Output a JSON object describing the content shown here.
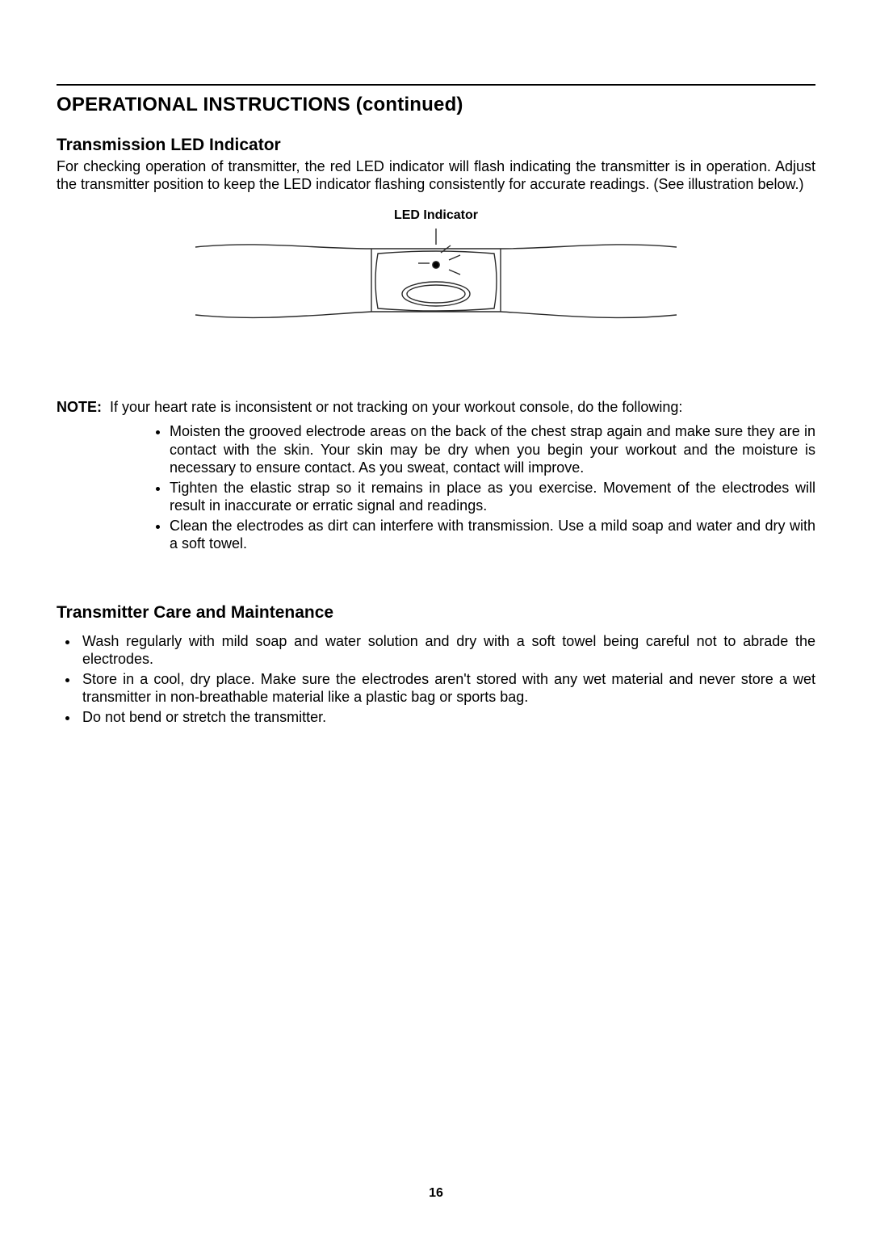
{
  "section_title": "OPERATIONAL INSTRUCTIONS (continued)",
  "sub1_title": "Transmission LED Indicator",
  "sub1_body": "For checking operation of transmitter, the red LED indicator will flash indicating the transmitter is in operation. Adjust the transmitter position to keep the LED indicator flashing consistently for accurate readings. (See illustration below.)",
  "figure": {
    "label": "LED Indicator",
    "stroke": "#2a2a2a",
    "stroke_width": 1.4,
    "led_dot_radius": 4.2
  },
  "note_label": "NOTE:",
  "note_lead": "If your heart rate is inconsistent or not tracking on your workout console, do the following:",
  "note_bullets": [
    "Moisten the grooved electrode areas on the back of the chest strap again and make sure they are in contact with the skin. Your skin may be dry when you begin your workout and the moisture is necessary to ensure contact. As you sweat, contact will improve.",
    "Tighten the elastic strap so it remains in place as you exercise. Movement of the electrodes will result in inaccurate or erratic signal and readings.",
    "Clean the electrodes as dirt can interfere with transmission. Use a mild soap and water and dry with a soft towel."
  ],
  "sub2_title": "Transmitter Care and Maintenance",
  "care_bullets": [
    "Wash regularly with mild soap and water solution and dry with a soft towel being careful not to abrade the electrodes.",
    "Store in a cool, dry place. Make sure the electrodes aren't stored with any wet material and never store a wet transmitter in non-breathable material like a plastic bag or sports bag.",
    "Do not bend or stretch the transmitter."
  ],
  "page_number": "16"
}
